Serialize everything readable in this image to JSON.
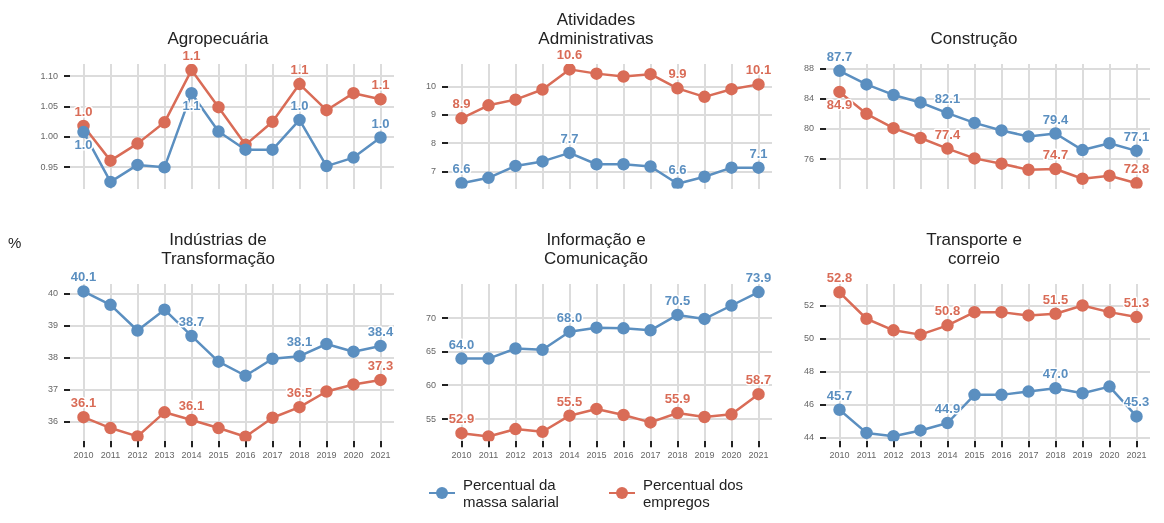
{
  "chart_data": [
    {
      "type": "line",
      "title": "Agropecuária",
      "ylabel": "%",
      "categories": [
        "2010",
        "2011",
        "2012",
        "2013",
        "2014",
        "2015",
        "2016",
        "2017",
        "2018",
        "2019",
        "2020",
        "2021"
      ],
      "ylim": [
        0.915,
        1.12
      ],
      "yticks": [
        {
          "value": 0.95,
          "label": "0.95"
        },
        {
          "value": 1.0,
          "label": "1.00"
        },
        {
          "value": 1.05,
          "label": "1.05"
        },
        {
          "value": 1.1,
          "label": "1.10"
        }
      ],
      "tick_labels": "y",
      "grid": true,
      "marker": "circle",
      "series": [
        {
          "color": "#5b8fc0",
          "values": [
            1.008,
            0.926,
            0.954,
            0.95,
            1.072,
            1.009,
            0.979,
            0.979,
            1.028,
            0.952,
            0.966,
            0.999
          ],
          "value_labels": [
            "1.0",
            null,
            null,
            null,
            "1.1",
            null,
            null,
            null,
            "1.0",
            null,
            null,
            "1.0"
          ]
        },
        {
          "color": "#d96c57",
          "values": [
            1.018,
            0.961,
            0.989,
            1.024,
            1.11,
            1.049,
            0.987,
            1.025,
            1.087,
            1.044,
            1.072,
            1.062
          ],
          "value_labels": [
            "1.0",
            null,
            null,
            null,
            "1.1",
            null,
            null,
            null,
            "1.1",
            null,
            null,
            "1.1"
          ]
        }
      ]
    },
    {
      "type": "line",
      "title": "Atividades Administrativas",
      "categories": [
        "2010",
        "2011",
        "2012",
        "2013",
        "2014",
        "2015",
        "2016",
        "2017",
        "2018",
        "2019",
        "2020",
        "2021"
      ],
      "ylim": [
        6.4,
        10.8
      ],
      "yticks": [
        7,
        8,
        9,
        10
      ],
      "tick_labels": "y",
      "grid": true,
      "marker": "circle",
      "series": [
        {
          "color": "#5b8fc0",
          "values": [
            6.59,
            6.78,
            7.2,
            7.36,
            7.66,
            7.26,
            7.26,
            7.18,
            6.57,
            6.82,
            7.14,
            7.14
          ],
          "value_labels": [
            "6.6",
            null,
            null,
            null,
            "7.7",
            null,
            null,
            null,
            "6.6",
            null,
            null,
            "7.1"
          ]
        },
        {
          "color": "#d96c57",
          "values": [
            8.88,
            9.34,
            9.54,
            9.9,
            10.61,
            10.46,
            10.36,
            10.44,
            9.94,
            9.64,
            9.91,
            10.08
          ],
          "value_labels": [
            "8.9",
            null,
            null,
            null,
            "10.6",
            null,
            null,
            null,
            "9.9",
            null,
            null,
            "10.1"
          ]
        }
      ]
    },
    {
      "type": "line",
      "title": "Construção",
      "categories": [
        "2010",
        "2011",
        "2012",
        "2013",
        "2014",
        "2015",
        "2016",
        "2017",
        "2018",
        "2019",
        "2020",
        "2021"
      ],
      "ylim": [
        72.1,
        88.6
      ],
      "yticks": [
        76,
        80,
        84,
        88
      ],
      "tick_labels": "y",
      "grid": true,
      "marker": "circle",
      "series": [
        {
          "color": "#5b8fc0",
          "values": [
            87.7,
            85.9,
            84.5,
            83.5,
            82.1,
            80.8,
            79.8,
            79.0,
            79.4,
            77.2,
            78.1,
            77.1
          ],
          "value_labels": [
            "87.7",
            null,
            null,
            null,
            "82.1",
            null,
            null,
            null,
            "79.4",
            null,
            null,
            "77.1"
          ]
        },
        {
          "color": "#d96c57",
          "values": [
            84.9,
            82.0,
            80.1,
            78.8,
            77.4,
            76.1,
            75.4,
            74.6,
            74.7,
            73.4,
            73.8,
            72.8
          ],
          "value_labels": [
            "84.9",
            null,
            null,
            null,
            "77.4",
            null,
            null,
            null,
            "74.7",
            null,
            null,
            "72.8"
          ]
        }
      ]
    },
    {
      "type": "line",
      "title": "Indústrias de Transformação",
      "categories": [
        "2010",
        "2011",
        "2012",
        "2013",
        "2014",
        "2015",
        "2016",
        "2017",
        "2018",
        "2019",
        "2020",
        "2021"
      ],
      "ylim": [
        35.4,
        40.3
      ],
      "yticks": [
        36,
        37,
        38,
        39,
        40
      ],
      "grid": true,
      "marker": "circle",
      "series": [
        {
          "color": "#5b8fc0",
          "values": [
            40.07,
            39.65,
            38.85,
            39.5,
            38.68,
            37.88,
            37.44,
            37.97,
            38.05,
            38.43,
            38.19,
            38.37
          ],
          "value_labels": [
            "40.1",
            null,
            null,
            null,
            "38.7",
            null,
            null,
            null,
            "38.1",
            null,
            null,
            "38.4"
          ]
        },
        {
          "color": "#d96c57",
          "values": [
            36.15,
            35.81,
            35.55,
            36.3,
            36.06,
            35.81,
            35.54,
            36.13,
            36.46,
            36.95,
            37.17,
            37.31
          ],
          "value_labels": [
            "36.1",
            null,
            null,
            null,
            "36.1",
            null,
            null,
            null,
            "36.5",
            null,
            null,
            "37.3"
          ]
        }
      ]
    },
    {
      "type": "line",
      "title": "Informação e Comunicação",
      "categories": [
        "2010",
        "2011",
        "2012",
        "2013",
        "2014",
        "2015",
        "2016",
        "2017",
        "2018",
        "2019",
        "2020",
        "2021"
      ],
      "ylim": [
        51.7,
        75.1
      ],
      "yticks": [
        55,
        60,
        65,
        70
      ],
      "grid": true,
      "marker": "circle",
      "legend": "bottom",
      "series": [
        {
          "name": "Percentual da massa salarial",
          "color": "#5b8fc0",
          "values": [
            64.0,
            64.0,
            65.5,
            65.3,
            68.0,
            68.6,
            68.5,
            68.2,
            70.5,
            69.9,
            71.9,
            73.9
          ],
          "value_labels": [
            "64.0",
            null,
            null,
            null,
            "68.0",
            null,
            null,
            null,
            "70.5",
            null,
            null,
            "73.9"
          ]
        },
        {
          "name": "Percentual dos empregos",
          "color": "#d96c57",
          "values": [
            52.9,
            52.4,
            53.5,
            53.1,
            55.5,
            56.5,
            55.6,
            54.5,
            55.9,
            55.3,
            55.7,
            58.7
          ],
          "value_labels": [
            "52.9",
            null,
            null,
            null,
            "55.5",
            null,
            null,
            null,
            "55.9",
            null,
            null,
            "58.7"
          ]
        }
      ]
    },
    {
      "type": "line",
      "title": "Transporte e correio",
      "categories": [
        "2010",
        "2011",
        "2012",
        "2013",
        "2014",
        "2015",
        "2016",
        "2017",
        "2018",
        "2019",
        "2020",
        "2021"
      ],
      "ylim": [
        43.8,
        53.3
      ],
      "yticks": [
        44,
        46,
        48,
        50,
        52
      ],
      "grid": true,
      "marker": "circle",
      "series": [
        {
          "color": "#5b8fc0",
          "values": [
            45.7,
            44.3,
            44.1,
            44.45,
            44.9,
            46.6,
            46.6,
            46.8,
            47.0,
            46.7,
            47.1,
            45.3
          ],
          "value_labels": [
            "45.7",
            null,
            null,
            null,
            "44.9",
            null,
            null,
            null,
            "47.0",
            null,
            null,
            "45.3"
          ]
        },
        {
          "color": "#d96c57",
          "values": [
            52.8,
            51.2,
            50.5,
            50.24,
            50.8,
            51.6,
            51.6,
            51.4,
            51.5,
            52.0,
            51.6,
            51.3
          ],
          "value_labels": [
            "52.8",
            null,
            null,
            null,
            "50.8",
            null,
            null,
            null,
            "51.5",
            null,
            null,
            "51.3"
          ]
        }
      ]
    }
  ]
}
